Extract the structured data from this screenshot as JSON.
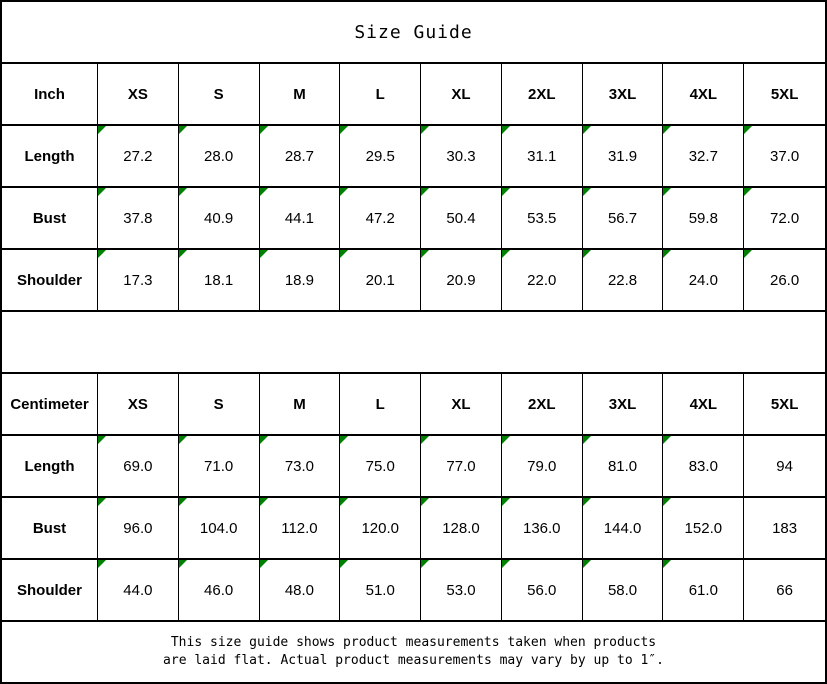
{
  "title": "Size Guide",
  "marker_color": "#008000",
  "inch_table": {
    "unit_label": "Inch",
    "sizes": [
      "XS",
      "S",
      "M",
      "L",
      "XL",
      "2XL",
      "3XL",
      "4XL",
      "5XL"
    ],
    "rows": [
      {
        "label": "Length",
        "values": [
          "27.2",
          "28.0",
          "28.7",
          "29.5",
          "30.3",
          "31.1",
          "31.9",
          "32.7",
          "37.0"
        ]
      },
      {
        "label": "Bust",
        "values": [
          "37.8",
          "40.9",
          "44.1",
          "47.2",
          "50.4",
          "53.5",
          "56.7",
          "59.8",
          "72.0"
        ]
      },
      {
        "label": "Shoulder",
        "values": [
          "17.3",
          "18.1",
          "18.9",
          "20.1",
          "20.9",
          "22.0",
          "22.8",
          "24.0",
          "26.0"
        ]
      }
    ]
  },
  "cm_table": {
    "unit_label": "Centimeter",
    "sizes": [
      "XS",
      "S",
      "M",
      "L",
      "XL",
      "2XL",
      "3XL",
      "4XL",
      "5XL"
    ],
    "rows": [
      {
        "label": "Length",
        "values": [
          "69.0",
          "71.0",
          "73.0",
          "75.0",
          "77.0",
          "79.0",
          "81.0",
          "83.0",
          "94"
        ]
      },
      {
        "label": "Bust",
        "values": [
          "96.0",
          "104.0",
          "112.0",
          "120.0",
          "128.0",
          "136.0",
          "144.0",
          "152.0",
          "183"
        ]
      },
      {
        "label": "Shoulder",
        "values": [
          "44.0",
          "46.0",
          "48.0",
          "51.0",
          "53.0",
          "56.0",
          "58.0",
          "61.0",
          "66"
        ]
      }
    ]
  },
  "footer": {
    "line1": "This size guide shows product measurements taken when products",
    "line2": "are laid flat. Actual product measurements may vary by up to 1″."
  }
}
